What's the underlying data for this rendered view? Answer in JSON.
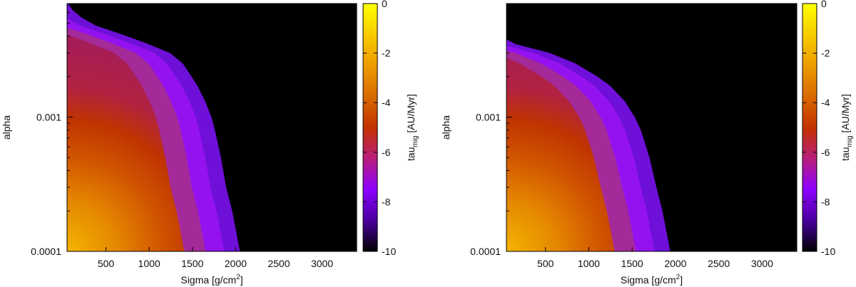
{
  "chart_data": [
    {
      "type": "heatmap",
      "title": "",
      "xlabel_main": "Sigma [g/cm",
      "xlabel_sup": "2",
      "xlabel_end": "]",
      "ylabel": "alpha",
      "xlim": [
        50,
        3400
      ],
      "ylim": [
        0.0001,
        0.007
      ],
      "y_scale": "log",
      "x_ticks": [
        500,
        1000,
        1500,
        2000,
        2500,
        3000
      ],
      "x_tick_labels": [
        "500",
        "1000",
        "1500",
        "2000",
        "2500",
        "3000"
      ],
      "y_ticks": [
        0.0001,
        0.001
      ],
      "y_tick_labels": [
        "0.0001",
        "0.001"
      ],
      "colorbar": {
        "label_main": "tau",
        "label_sub": "mig",
        "label_end": " [AU/Myr]",
        "range": [
          -10,
          0
        ],
        "ticks": [
          0,
          -2,
          -4,
          -6,
          -8,
          -10
        ],
        "tick_labels": [
          "0",
          "-2",
          "-4",
          "-6",
          "-8",
          "-10"
        ],
        "palette": [
          "#000000",
          "#4a009e",
          "#8d00ff",
          "#b81e7a",
          "#c33200",
          "#d96a00",
          "#ed9c00",
          "#f8cc00",
          "#ffff00"
        ]
      },
      "boundary": {
        "alpha": [
          0.0001,
          0.0002,
          0.0003,
          0.0005,
          0.0008,
          0.001,
          0.0013,
          0.0017,
          0.002,
          0.0025,
          0.003,
          0.0036,
          0.0042,
          0.0048,
          0.0055,
          0.0062,
          0.007
        ],
        "sigma": [
          2050,
          1960,
          1890,
          1830,
          1760,
          1720,
          1650,
          1560,
          1490,
          1390,
          1240,
          940,
          650,
          380,
          220,
          120,
          60
        ]
      }
    },
    {
      "type": "heatmap",
      "title": "",
      "xlabel_main": "Sigma [g/cm",
      "xlabel_sup": "2",
      "xlabel_end": "]",
      "ylabel": "alpha",
      "xlim": [
        50,
        3400
      ],
      "ylim": [
        0.0001,
        0.007
      ],
      "y_scale": "log",
      "x_ticks": [
        500,
        1000,
        1500,
        2000,
        2500,
        3000
      ],
      "x_tick_labels": [
        "500",
        "1000",
        "1500",
        "2000",
        "2500",
        "3000"
      ],
      "y_ticks": [
        0.0001,
        0.001
      ],
      "y_tick_labels": [
        "0.0001",
        "0.001"
      ],
      "colorbar": {
        "label_main": "tau",
        "label_sub": "mig",
        "label_end": " [AU/Myr]",
        "range": [
          -10,
          0
        ],
        "ticks": [
          0,
          -2,
          -4,
          -6,
          -8,
          -10
        ],
        "tick_labels": [
          "0",
          "-2",
          "-4",
          "-6",
          "-8",
          "-10"
        ],
        "palette": [
          "#000000",
          "#4a009e",
          "#8d00ff",
          "#b81e7a",
          "#c33200",
          "#d96a00",
          "#ed9c00",
          "#f8cc00",
          "#ffff00"
        ]
      },
      "boundary": {
        "alpha": [
          0.0001,
          0.0002,
          0.0003,
          0.0005,
          0.0008,
          0.001,
          0.0013,
          0.0017,
          0.002,
          0.0025,
          0.003,
          0.0035,
          0.0038
        ],
        "sigma": [
          1940,
          1850,
          1780,
          1700,
          1600,
          1530,
          1420,
          1250,
          1100,
          850,
          550,
          150,
          50
        ]
      }
    }
  ]
}
